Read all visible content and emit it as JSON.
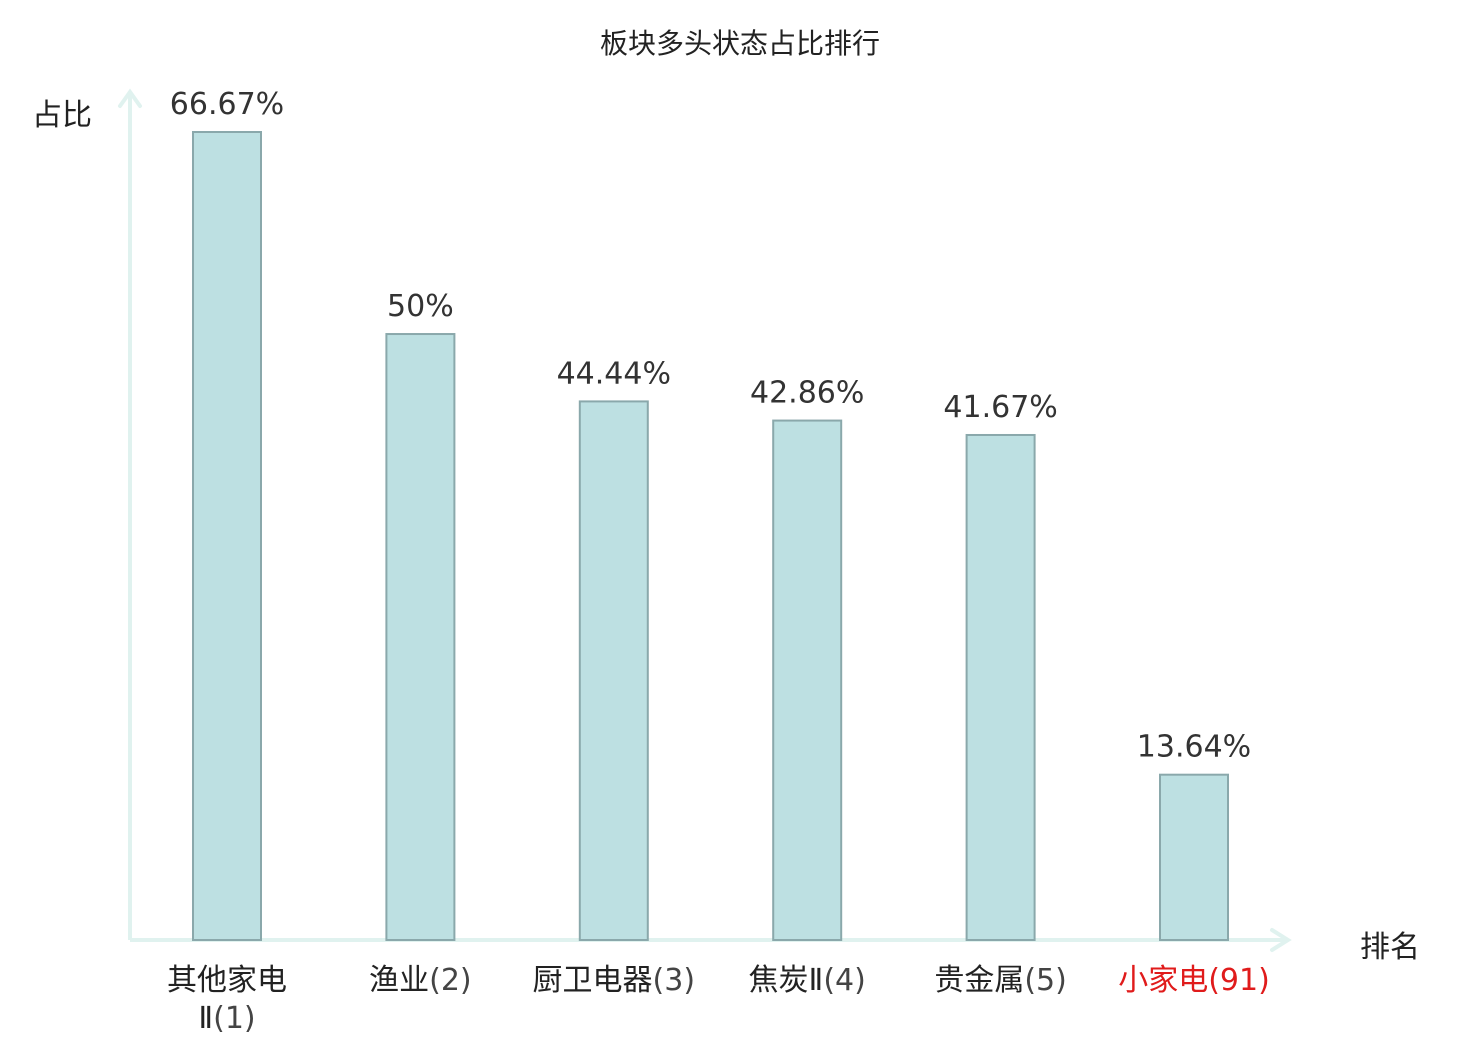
{
  "chart_data": {
    "type": "bar",
    "title": "板块多头状态占比排行",
    "ylabel": "占比",
    "xlabel": "排名",
    "categories": [
      {
        "name": "其他家电Ⅱ",
        "rank": "(1)"
      },
      {
        "name": "渔业",
        "rank": "(2)"
      },
      {
        "name": "厨卫电器",
        "rank": "(3)"
      },
      {
        "name": "焦炭Ⅱ",
        "rank": "(4)"
      },
      {
        "name": "贵金属",
        "rank": "(5)"
      },
      {
        "name": "小家电",
        "rank": "(91)"
      }
    ],
    "values": [
      66.67,
      50,
      44.44,
      42.86,
      41.67,
      13.64
    ],
    "value_labels": [
      "66.67%",
      "50%",
      "44.44%",
      "42.86%",
      "41.67%",
      "13.64%"
    ],
    "highlight_index": 5,
    "ylim": [
      0,
      66.67
    ],
    "grid": false,
    "colors": {
      "bar_fill": "#bde0e2",
      "bar_stroke": "#8aa8ab",
      "axis": "#e0f2ef",
      "highlight_text": "#e01b1b"
    }
  }
}
